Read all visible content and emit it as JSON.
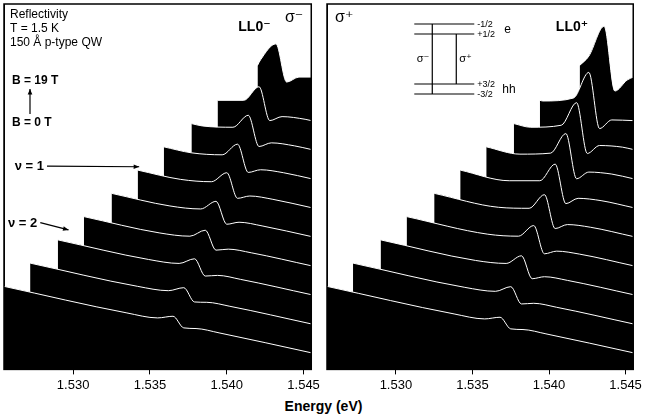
{
  "xlabel": "Energy (eV)",
  "chart_data": [
    {
      "type": "line",
      "title": "σ⁻",
      "xlim": [
        1.5255,
        1.5455
      ],
      "xticks": [
        {
          "value": 1.53,
          "label": "1.530"
        },
        1.535,
        {
          "value": 1.54,
          "label": "1.540"
        },
        1.545
      ],
      "ylim": [
        0,
        110
      ],
      "tick_labels": "x",
      "grid": false,
      "color": "#ffffff",
      "annotations": [
        "Reflectivity",
        "T = 1.5 K",
        "150 Å p-type QW",
        "B = 19 T",
        "B = 0 T",
        "ν = 1",
        "ν = 2",
        "LL0⁻"
      ],
      "series": [
        {
          "B": 0,
          "x": [
            1.5255,
            1.5335,
            1.5355,
            1.5365,
            1.5372,
            1.538,
            1.5395,
            1.5455
          ],
          "values": [
            25,
            17,
            15.5,
            16,
            12.5,
            12.3,
            11,
            5
          ]
        },
        {
          "B": 2,
          "x": [
            1.5272,
            1.5342,
            1.5362,
            1.5372,
            1.5379,
            1.5387,
            1.5402,
            1.5455
          ],
          "values": [
            32,
            25,
            23.7,
            24.6,
            20.3,
            20.2,
            19,
            13.7
          ]
        },
        {
          "B": 4,
          "x": [
            1.529,
            1.5349,
            1.5369,
            1.5379,
            1.5386,
            1.5394,
            1.5409,
            1.5455
          ],
          "values": [
            39,
            33.1,
            31.9,
            33.3,
            28.1,
            28.3,
            27.1,
            22.5
          ]
        },
        {
          "B": 6,
          "x": [
            1.5307,
            1.5356,
            1.5376,
            1.5386,
            1.5393,
            1.5401,
            1.5416,
            1.5455
          ],
          "values": [
            46,
            41.1,
            40.1,
            41.9,
            35.9,
            36.2,
            35.1,
            31.2
          ]
        },
        {
          "B": 8,
          "x": [
            1.5325,
            1.5363,
            1.5383,
            1.5393,
            1.54,
            1.5408,
            1.5423,
            1.5455
          ],
          "values": [
            53,
            49.2,
            48.3,
            50.6,
            43.7,
            44.3,
            43.2,
            40
          ]
        },
        {
          "B": 10,
          "x": [
            1.5342,
            1.537,
            1.539,
            1.54,
            1.5407,
            1.5415,
            1.543,
            1.5455
          ],
          "values": [
            60,
            57.2,
            56.5,
            59.2,
            51.5,
            52.2,
            51.2,
            48.7
          ]
        },
        {
          "B": 12,
          "x": [
            1.5359,
            1.5377,
            1.5397,
            1.5407,
            1.5414,
            1.5422,
            1.5437,
            1.5455
          ],
          "values": [
            67,
            65.2,
            64.6,
            67.8,
            59.3,
            60.1,
            59.2,
            57.4
          ]
        },
        {
          "B": 14,
          "x": [
            1.5377,
            1.5384,
            1.5404,
            1.5414,
            1.5421,
            1.5429,
            1.5444,
            1.5455
          ],
          "values": [
            74,
            73.3,
            72.9,
            76.5,
            67.1,
            68.2,
            67.3,
            66.2
          ]
        },
        {
          "B": 16,
          "x": [
            1.5394,
            1.5411,
            1.5421,
            1.5428,
            1.5436,
            1.5451,
            1.5455
          ],
          "values": [
            81,
            81,
            85.1,
            74.9,
            76.1,
            75.3,
            74.9
          ]
        },
        {
          "B": 19,
          "x": [
            1.542,
            1.5422,
            1.5432,
            1.5439,
            1.5447,
            1.5455
          ],
          "values": [
            91.5,
            93.2,
            98,
            86.5,
            88,
            88
          ]
        }
      ]
    },
    {
      "type": "line",
      "title": "σ⁺",
      "xlim": [
        1.5255,
        1.5455
      ],
      "xticks": [
        {
          "value": 1.53,
          "label": "1.530"
        },
        1.535,
        {
          "value": 1.54,
          "label": "1.540"
        },
        1.545
      ],
      "ylim": [
        0,
        110
      ],
      "tick_labels": "x",
      "grid": false,
      "color": "#ffffff",
      "annotations": [
        "LL0⁺"
      ],
      "inset": {
        "e_levels": [
          "-1/2",
          "+1/2"
        ],
        "hh_levels": [
          "+3/2",
          "-3/2"
        ],
        "bands": [
          "e",
          "hh"
        ],
        "transitions": [
          "σ⁻",
          "σ⁺"
        ]
      },
      "series": [
        {
          "B": 0,
          "x": [
            1.5255,
            1.5338,
            1.5358,
            1.5368,
            1.5375,
            1.5383,
            1.5398,
            1.5455
          ],
          "values": [
            25,
            16.7,
            15.2,
            15.7,
            12.2,
            12,
            10.7,
            5
          ]
        },
        {
          "B": 2,
          "x": [
            1.5272,
            1.5345,
            1.5365,
            1.5375,
            1.5382,
            1.539,
            1.5405,
            1.5455
          ],
          "values": [
            32,
            24.7,
            23.5,
            24.9,
            19.7,
            19.9,
            18.7,
            13.7
          ]
        },
        {
          "B": 4,
          "x": [
            1.529,
            1.5352,
            1.5372,
            1.5382,
            1.5389,
            1.5397,
            1.5412,
            1.5455
          ],
          "values": [
            39,
            32.8,
            31.9,
            34.2,
            27.3,
            27.9,
            26.8,
            22.5
          ]
        },
        {
          "B": 6,
          "x": [
            1.5307,
            1.536,
            1.538,
            1.539,
            1.5397,
            1.5405,
            1.542,
            1.5455
          ],
          "values": [
            46,
            40.7,
            40.1,
            43.3,
            34.8,
            35.6,
            34.7,
            31.2
          ]
        },
        {
          "B": 8,
          "x": [
            1.5325,
            1.5367,
            1.5387,
            1.5397,
            1.5404,
            1.5412,
            1.5427,
            1.5455
          ],
          "values": [
            53,
            48.8,
            48.5,
            52.6,
            42.4,
            43.6,
            42.8,
            40
          ]
        },
        {
          "B": 10,
          "x": [
            1.5342,
            1.5374,
            1.5394,
            1.5404,
            1.5411,
            1.5419,
            1.5434,
            1.5455
          ],
          "values": [
            60,
            56.8,
            56.8,
            61.8,
            49.9,
            51.5,
            50.8,
            48.7
          ]
        },
        {
          "B": 12,
          "x": [
            1.5359,
            1.5381,
            1.5401,
            1.5411,
            1.5418,
            1.5426,
            1.5441,
            1.5455
          ],
          "values": [
            67,
            64.8,
            65.1,
            71,
            57.4,
            59.4,
            58.8,
            57.4
          ]
        },
        {
          "B": 14,
          "x": [
            1.5377,
            1.5388,
            1.5408,
            1.5418,
            1.5425,
            1.5433,
            1.5448,
            1.5455
          ],
          "values": [
            74,
            72.9,
            73.5,
            80.3,
            65,
            67.4,
            66.9,
            66.2
          ]
        },
        {
          "B": 16,
          "x": [
            1.5394,
            1.5396,
            1.5416,
            1.5426,
            1.5433,
            1.5441,
            1.5455
          ],
          "values": [
            81,
            80.8,
            81.7,
            89.4,
            72.5,
            75.1,
            74.9
          ]
        },
        {
          "B": 19,
          "x": [
            1.542,
            1.5426,
            1.5436,
            1.5443,
            1.5451,
            1.5455
          ],
          "values": [
            91.5,
            94.3,
            103.3,
            83.8,
            87.1,
            88
          ]
        }
      ]
    }
  ]
}
